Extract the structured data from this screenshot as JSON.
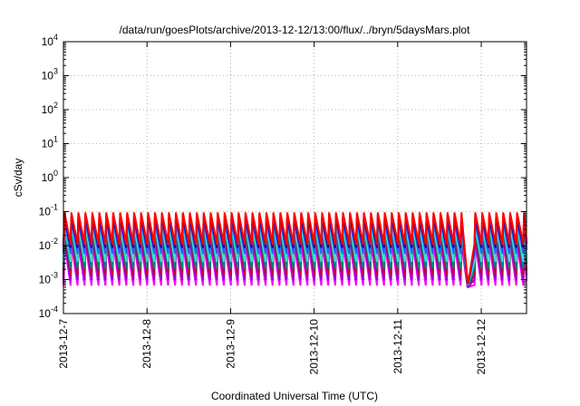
{
  "chart_data": {
    "type": "line",
    "title": "/data/run/goesPlots/archive/2013-12-12/13:00/flux/../bryn/5daysMars.plot",
    "xlabel": "Coordinated Universal Time (UTC)",
    "ylabel": "cSv/day",
    "yscale": "log",
    "ylim": [
      0.0001,
      10000
    ],
    "xlim": [
      "2013-12-07T00:00",
      "2013-12-12T13:00"
    ],
    "grid": true,
    "legend": "none",
    "y_ticks": [
      {
        "base": "10",
        "exp": "4"
      },
      {
        "base": "10",
        "exp": "3"
      },
      {
        "base": "10",
        "exp": "2"
      },
      {
        "base": "10",
        "exp": "1"
      },
      {
        "base": "10",
        "exp": "0"
      },
      {
        "base": "10",
        "exp": "-1"
      },
      {
        "base": "10",
        "exp": "-2"
      },
      {
        "base": "10",
        "exp": "-3"
      },
      {
        "base": "10",
        "exp": "-4"
      }
    ],
    "x_ticks": [
      "2013-12-7",
      "2013-12-8",
      "2013-12-9",
      "2013-12-10",
      "2013-12-11",
      "2013-12-12"
    ],
    "sawtooth_period_hours": 2,
    "series": [
      {
        "color": "#ff00ff",
        "peak": 0.012,
        "trough": 0.0007
      },
      {
        "color": "#9400d3",
        "peak": 0.018,
        "trough": 0.001
      },
      {
        "color": "#c00040",
        "peak": 0.024,
        "trough": 0.0014
      },
      {
        "color": "#008080",
        "peak": 0.032,
        "trough": 0.0022
      },
      {
        "color": "#40e0d0",
        "peak": 0.04,
        "trough": 0.0035
      },
      {
        "color": "#3060ff",
        "peak": 0.055,
        "trough": 0.006
      },
      {
        "color": "#0000c0",
        "peak": 0.07,
        "trough": 0.009
      },
      {
        "color": "#ff0000",
        "peak": 0.09,
        "trough": 0.011
      }
    ],
    "events": [
      {
        "start": "2013-12-11T20:00",
        "end": "2013-12-11T22:00",
        "level": 0.0006
      }
    ]
  }
}
